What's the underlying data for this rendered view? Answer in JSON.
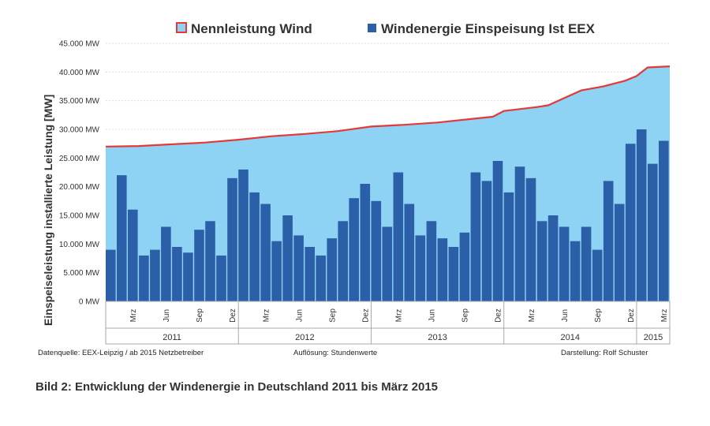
{
  "chart_data": {
    "type": "area",
    "ylabel": "Einspeiseleistung installierte Leistung [MW]",
    "ylim": [
      0,
      45000
    ],
    "yticks": [
      0,
      5000,
      10000,
      15000,
      20000,
      25000,
      30000,
      35000,
      40000,
      45000
    ],
    "ytick_labels": [
      "0 MW",
      "5.000 MW",
      "10.000 MW",
      "15.000 MW",
      "20.000 MW",
      "25.000 MW",
      "30.000 MW",
      "35.000 MW",
      "40.000 MW",
      "45.000 MW"
    ],
    "x_range": [
      "2011-01",
      "2015-03"
    ],
    "month_labels": [
      {
        "label": "Mrz",
        "date": "2011-03"
      },
      {
        "label": "Jun",
        "date": "2011-06"
      },
      {
        "label": "Sep",
        "date": "2011-09"
      },
      {
        "label": "Dez",
        "date": "2011-12"
      },
      {
        "label": "Mrz",
        "date": "2012-03"
      },
      {
        "label": "Jun",
        "date": "2012-06"
      },
      {
        "label": "Sep",
        "date": "2012-09"
      },
      {
        "label": "Dez",
        "date": "2012-12"
      },
      {
        "label": "Mrz",
        "date": "2013-03"
      },
      {
        "label": "Jun",
        "date": "2013-06"
      },
      {
        "label": "Sep",
        "date": "2013-09"
      },
      {
        "label": "Dez",
        "date": "2013-12"
      },
      {
        "label": "Mrz",
        "date": "2014-03"
      },
      {
        "label": "Jun",
        "date": "2014-06"
      },
      {
        "label": "Sep",
        "date": "2014-09"
      },
      {
        "label": "Dez",
        "date": "2014-12"
      },
      {
        "label": "Mrz",
        "date": "2015-03"
      }
    ],
    "year_labels": [
      "2011",
      "2012",
      "2013",
      "2014",
      "2015"
    ],
    "grid": true,
    "legend_position": "top",
    "series": [
      {
        "name": "Nennleistung Wind",
        "color": "#8fd3f4",
        "line_color": "#e23a3a",
        "points": [
          [
            "2011-01",
            27000
          ],
          [
            "2011-04",
            27100
          ],
          [
            "2011-07",
            27400
          ],
          [
            "2011-10",
            27700
          ],
          [
            "2012-01",
            28200
          ],
          [
            "2012-04",
            28800
          ],
          [
            "2012-07",
            29200
          ],
          [
            "2012-10",
            29700
          ],
          [
            "2013-01",
            30500
          ],
          [
            "2013-04",
            30800
          ],
          [
            "2013-07",
            31200
          ],
          [
            "2013-10",
            31800
          ],
          [
            "2013-12",
            32200
          ],
          [
            "2014-01",
            33200
          ],
          [
            "2014-04",
            33900
          ],
          [
            "2014-05",
            34200
          ],
          [
            "2014-08",
            36800
          ],
          [
            "2014-10",
            37500
          ],
          [
            "2014-12",
            38500
          ],
          [
            "2015-01",
            39300
          ],
          [
            "2015-02",
            40800
          ],
          [
            "2015-03",
            41000
          ]
        ]
      },
      {
        "name": "Windenergie Einspeisung Ist EEX",
        "color": "#2b5fa8",
        "points": [
          [
            "2011-01",
            9000
          ],
          [
            "2011-02",
            22000
          ],
          [
            "2011-03",
            16000
          ],
          [
            "2011-04",
            8000
          ],
          [
            "2011-05",
            9000
          ],
          [
            "2011-06",
            13000
          ],
          [
            "2011-07",
            9500
          ],
          [
            "2011-08",
            8500
          ],
          [
            "2011-09",
            12500
          ],
          [
            "2011-10",
            14000
          ],
          [
            "2011-11",
            8000
          ],
          [
            "2011-12",
            21500
          ],
          [
            "2012-01",
            23000
          ],
          [
            "2012-02",
            19000
          ],
          [
            "2012-03",
            17000
          ],
          [
            "2012-04",
            10500
          ],
          [
            "2012-05",
            15000
          ],
          [
            "2012-06",
            11500
          ],
          [
            "2012-07",
            9500
          ],
          [
            "2012-08",
            8000
          ],
          [
            "2012-09",
            11000
          ],
          [
            "2012-10",
            14000
          ],
          [
            "2012-11",
            18000
          ],
          [
            "2012-12",
            20500
          ],
          [
            "2013-01",
            17500
          ],
          [
            "2013-02",
            13000
          ],
          [
            "2013-03",
            22500
          ],
          [
            "2013-04",
            17000
          ],
          [
            "2013-05",
            11500
          ],
          [
            "2013-06",
            14000
          ],
          [
            "2013-07",
            11000
          ],
          [
            "2013-08",
            9500
          ],
          [
            "2013-09",
            12000
          ],
          [
            "2013-10",
            22500
          ],
          [
            "2013-11",
            21000
          ],
          [
            "2013-12",
            24500
          ],
          [
            "2014-01",
            19000
          ],
          [
            "2014-02",
            23500
          ],
          [
            "2014-03",
            21500
          ],
          [
            "2014-04",
            14000
          ],
          [
            "2014-05",
            15000
          ],
          [
            "2014-06",
            13000
          ],
          [
            "2014-07",
            10500
          ],
          [
            "2014-08",
            13000
          ],
          [
            "2014-09",
            9000
          ],
          [
            "2014-10",
            21000
          ],
          [
            "2014-11",
            17000
          ],
          [
            "2014-12",
            27500
          ],
          [
            "2015-01",
            30000
          ],
          [
            "2015-02",
            24000
          ],
          [
            "2015-03",
            28000
          ]
        ]
      }
    ]
  },
  "notes": {
    "source": "Datenquelle:  EEX-Leipzig  /  ab 2015 Netzbetreiber",
    "resolution": "Auflösung: Stundenwerte",
    "author": "Darstellung: Rolf Schuster"
  },
  "caption": "Bild 2: Entwicklung der Windenergie in Deutschland 2011 bis März 2015"
}
